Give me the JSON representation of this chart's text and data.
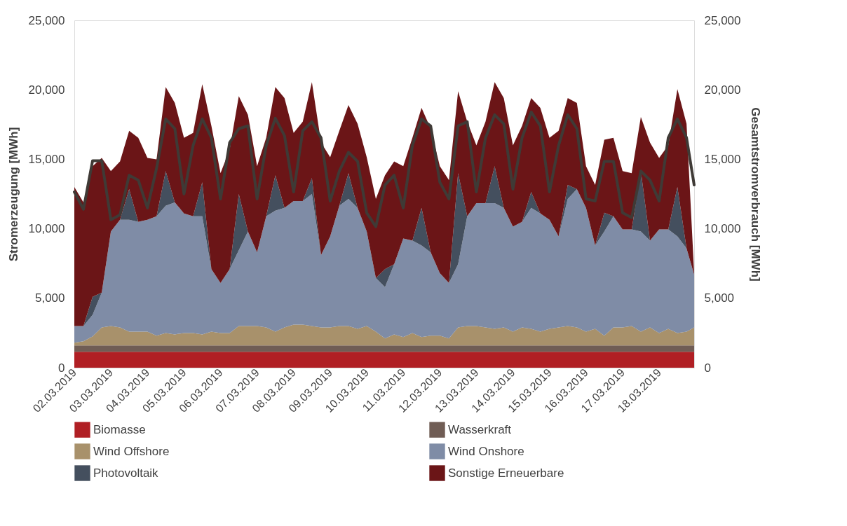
{
  "chart_data": {
    "type": "area",
    "stacked": true,
    "ylabel": "Stromerzeugung [MWh]",
    "y2label": "Gesamtstromverbrauch [MWh]",
    "legend": "bottom",
    "grid": false,
    "x": [
      "2019-03-02T00:00",
      "2019-03-02T06:00",
      "2019-03-02T12:00",
      "2019-03-02T18:00",
      "2019-03-03T00:00",
      "2019-03-03T06:00",
      "2019-03-03T12:00",
      "2019-03-03T18:00",
      "2019-03-04T00:00",
      "2019-03-04T06:00",
      "2019-03-04T12:00",
      "2019-03-04T18:00",
      "2019-03-05T00:00",
      "2019-03-05T06:00",
      "2019-03-05T12:00",
      "2019-03-05T18:00",
      "2019-03-06T00:00",
      "2019-03-06T06:00",
      "2019-03-06T12:00",
      "2019-03-06T18:00",
      "2019-03-07T00:00",
      "2019-03-07T06:00",
      "2019-03-07T12:00",
      "2019-03-07T18:00",
      "2019-03-08T00:00",
      "2019-03-08T06:00",
      "2019-03-08T12:00",
      "2019-03-08T18:00",
      "2019-03-09T00:00",
      "2019-03-09T06:00",
      "2019-03-09T12:00",
      "2019-03-09T18:00",
      "2019-03-10T00:00",
      "2019-03-10T06:00",
      "2019-03-10T12:00",
      "2019-03-10T18:00",
      "2019-03-11T00:00",
      "2019-03-11T06:00",
      "2019-03-11T12:00",
      "2019-03-11T18:00",
      "2019-03-12T00:00",
      "2019-03-12T06:00",
      "2019-03-12T12:00",
      "2019-03-12T18:00",
      "2019-03-13T00:00",
      "2019-03-13T06:00",
      "2019-03-13T12:00",
      "2019-03-13T18:00",
      "2019-03-14T00:00",
      "2019-03-14T06:00",
      "2019-03-14T12:00",
      "2019-03-14T18:00",
      "2019-03-15T00:00",
      "2019-03-15T06:00",
      "2019-03-15T12:00",
      "2019-03-15T18:00",
      "2019-03-16T00:00",
      "2019-03-16T06:00",
      "2019-03-16T12:00",
      "2019-03-16T18:00",
      "2019-03-17T00:00",
      "2019-03-17T06:00",
      "2019-03-17T12:00",
      "2019-03-17T18:00",
      "2019-03-18T00:00",
      "2019-03-18T06:00",
      "2019-03-18T12:00",
      "2019-03-18T18:00",
      "2019-03-18T23:00"
    ],
    "xlim": [
      "2019-03-02T00:00",
      "2019-03-18T23:00"
    ],
    "xticks": [
      {
        "value": "2019-03-02",
        "label": "02.03.2019"
      },
      {
        "value": "2019-03-03",
        "label": "03.03.2019"
      },
      {
        "value": "2019-03-04",
        "label": "04.03.2019"
      },
      {
        "value": "2019-03-05",
        "label": "05.03.2019"
      },
      {
        "value": "2019-03-06",
        "label": "06.03.2019"
      },
      {
        "value": "2019-03-07",
        "label": "07.03.2019"
      },
      {
        "value": "2019-03-08",
        "label": "08.03.2019"
      },
      {
        "value": "2019-03-09",
        "label": "09.03.2019"
      },
      {
        "value": "2019-03-10",
        "label": "10.03.2019"
      },
      {
        "value": "2019-03-11",
        "label": "11.03.2019"
      },
      {
        "value": "2019-03-12",
        "label": "12.03.2019"
      },
      {
        "value": "2019-03-13",
        "label": "13.03.2019"
      },
      {
        "value": "2019-03-14",
        "label": "14.03.2019"
      },
      {
        "value": "2019-03-15",
        "label": "15.03.2019"
      },
      {
        "value": "2019-03-16",
        "label": "16.03.2019"
      },
      {
        "value": "2019-03-17",
        "label": "17.03.2019"
      },
      {
        "value": "2019-03-18",
        "label": "18.03.2019"
      }
    ],
    "ylim": [
      0,
      25000
    ],
    "yticks": [
      {
        "value": 0,
        "label": "0"
      },
      {
        "value": 5000,
        "label": "5,000"
      },
      {
        "value": 10000,
        "label": "10,000"
      },
      {
        "value": 15000,
        "label": "15,000"
      },
      {
        "value": 20000,
        "label": "20,000"
      },
      {
        "value": 25000,
        "label": "25,000"
      }
    ],
    "y2lim": [
      0,
      25000
    ],
    "y2ticks": [
      {
        "value": 0,
        "label": "0"
      },
      {
        "value": 5000,
        "label": "5,000"
      },
      {
        "value": 10000,
        "label": "10,000"
      },
      {
        "value": 15000,
        "label": "15,000"
      },
      {
        "value": 20000,
        "label": "20,000"
      },
      {
        "value": 25000,
        "label": "25,000"
      }
    ],
    "series": [
      {
        "name": "Biomasse",
        "color": "#b01f24",
        "values": [
          1150,
          1150,
          1150,
          1150,
          1150,
          1150,
          1150,
          1150,
          1150,
          1150,
          1150,
          1150,
          1150,
          1150,
          1150,
          1150,
          1150,
          1150,
          1150,
          1150,
          1150,
          1150,
          1150,
          1150,
          1150,
          1150,
          1150,
          1150,
          1150,
          1150,
          1150,
          1150,
          1150,
          1150,
          1150,
          1150,
          1150,
          1150,
          1150,
          1150,
          1150,
          1150,
          1150,
          1150,
          1150,
          1150,
          1150,
          1150,
          1150,
          1150,
          1150,
          1150,
          1150,
          1150,
          1150,
          1150,
          1150,
          1150,
          1150,
          1150,
          1150,
          1150,
          1150,
          1150,
          1150,
          1150,
          1150,
          1150,
          1150
        ]
      },
      {
        "name": "Wasserkraft",
        "color": "#705d55",
        "values": [
          450,
          450,
          450,
          450,
          450,
          450,
          450,
          450,
          450,
          450,
          450,
          450,
          450,
          450,
          450,
          450,
          450,
          450,
          450,
          450,
          450,
          450,
          450,
          450,
          450,
          450,
          450,
          450,
          450,
          450,
          450,
          450,
          450,
          450,
          450,
          450,
          450,
          450,
          450,
          450,
          450,
          450,
          450,
          450,
          450,
          450,
          450,
          450,
          450,
          450,
          450,
          450,
          450,
          450,
          450,
          450,
          450,
          450,
          450,
          450,
          450,
          450,
          450,
          450,
          450,
          450,
          450,
          450,
          450
        ]
      },
      {
        "name": "Wind Offshore",
        "color": "#a8916b",
        "values": [
          200,
          300,
          650,
          1300,
          1400,
          1300,
          1000,
          1000,
          1000,
          700,
          900,
          800,
          900,
          900,
          800,
          1000,
          900,
          900,
          1400,
          1400,
          1400,
          1300,
          1000,
          1300,
          1500,
          1500,
          1400,
          1300,
          1300,
          1400,
          1400,
          1200,
          1400,
          1000,
          500,
          800,
          600,
          900,
          600,
          700,
          700,
          500,
          1300,
          1400,
          1400,
          1300,
          1200,
          1300,
          1000,
          1300,
          1200,
          1000,
          1200,
          1300,
          1400,
          1300,
          1000,
          1200,
          700,
          1300,
          1300,
          1400,
          1000,
          1300,
          900,
          1200,
          900,
          1000,
          1300
        ]
      },
      {
        "name": "Wind Onshore",
        "color": "#7f8ca6",
        "values": [
          1200,
          1100,
          1550,
          2500,
          6800,
          7750,
          8050,
          7900,
          8050,
          8600,
          9150,
          9500,
          8600,
          8400,
          8500,
          4500,
          3600,
          4600,
          5450,
          6800,
          5300,
          8000,
          8700,
          8600,
          8900,
          8900,
          9500,
          5200,
          6550,
          8650,
          9150,
          8700,
          6800,
          3850,
          3700,
          5050,
          7100,
          6650,
          6600,
          6000,
          4500,
          4000,
          4550,
          7900,
          8850,
          8950,
          9050,
          8600,
          7550,
          7600,
          8700,
          8500,
          7850,
          6550,
          9150,
          9950,
          8900,
          6000,
          7500,
          8000,
          7050,
          6950,
          7200,
          6250,
          7450,
          7150,
          6950,
          6000,
          3800
        ]
      },
      {
        "name": "Photovoltaik",
        "color": "#444f5e",
        "values": [
          0,
          0,
          1300,
          0,
          0,
          0,
          2200,
          0,
          0,
          0,
          2500,
          0,
          0,
          0,
          2450,
          0,
          0,
          0,
          4050,
          0,
          0,
          0,
          2550,
          0,
          0,
          0,
          1150,
          0,
          0,
          0,
          1850,
          0,
          0,
          0,
          1300,
          0,
          0,
          0,
          2700,
          0,
          0,
          0,
          6550,
          0,
          0,
          0,
          2650,
          0,
          0,
          0,
          1150,
          0,
          0,
          0,
          1000,
          0,
          0,
          0,
          1350,
          0,
          0,
          0,
          4350,
          0,
          0,
          0,
          3550,
          0,
          0
        ]
      },
      {
        "name": "Sonstige Erneuerbare",
        "color": "#6b1517",
        "values": [
          10000,
          8900,
          9400,
          9700,
          4350,
          4200,
          4200,
          6050,
          4450,
          4100,
          6050,
          7150,
          5450,
          6000,
          7050,
          10300,
          7900,
          8600,
          7050,
          8400,
          6200,
          5650,
          6350,
          7900,
          4900,
          5700,
          6900,
          8100,
          5700,
          5400,
          4900,
          6050,
          5350,
          5700,
          6750,
          7400,
          5200,
          7400,
          7200,
          8900,
          7700,
          7400,
          5900,
          6800,
          4150,
          5850,
          6050,
          7900,
          5850,
          6900,
          6750,
          7600,
          5900,
          7600,
          6250,
          6200,
          3000,
          4350,
          5250,
          5650,
          4200,
          4050,
          3900,
          7050,
          5150,
          6050,
          7050,
          8950,
          100
        ]
      },
      {
        "type": "line",
        "axis": "y2",
        "color": "#3f3a36",
        "values": [
          12650,
          11400,
          14900,
          14900,
          10650,
          11000,
          13850,
          13500,
          11500,
          14350,
          17900,
          17200,
          12500,
          16000,
          17900,
          16550,
          12150,
          16200,
          17200,
          17400,
          12150,
          16000,
          17950,
          16700,
          12650,
          17050,
          17700,
          16550,
          12000,
          14150,
          15500,
          14850,
          11150,
          10150,
          13150,
          13850,
          11500,
          16000,
          17900,
          17400,
          13350,
          12150,
          17400,
          17700,
          12650,
          16550,
          18200,
          17550,
          12850,
          16550,
          18400,
          17400,
          12650,
          16000,
          18200,
          17200,
          12150,
          12000,
          14850,
          14850,
          11150,
          10800,
          14150,
          13500,
          12000,
          16550,
          17900,
          16550,
          13150
        ]
      }
    ]
  }
}
